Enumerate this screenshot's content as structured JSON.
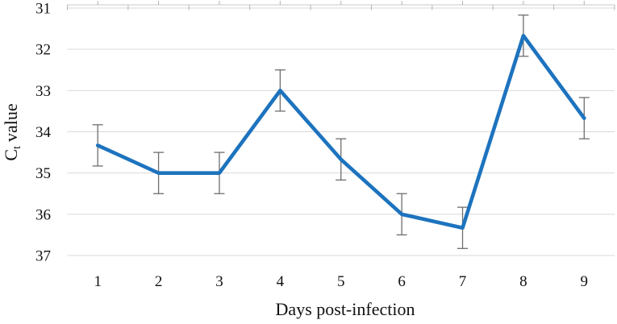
{
  "chart_data": {
    "type": "line",
    "title": "",
    "xlabel": "Days post-infection",
    "ylabel": "Ct value",
    "ylabel_parts": {
      "prefix": "C",
      "subscript": "t",
      "suffix": "value"
    },
    "categories": [
      "1",
      "2",
      "3",
      "4",
      "5",
      "6",
      "7",
      "8",
      "9"
    ],
    "series": [
      {
        "name": "Ct value",
        "values": [
          34.33,
          35.0,
          35.0,
          33.0,
          34.67,
          36.0,
          36.33,
          31.67,
          33.67
        ],
        "error_bars": [
          0.5,
          0.5,
          0.5,
          0.5,
          0.5,
          0.5,
          0.5,
          0.5,
          0.5
        ]
      }
    ],
    "y_axis": {
      "label": "Ct value",
      "min": 31,
      "max": 37,
      "step": 1,
      "reversed": true,
      "tick_labels": [
        "31",
        "32",
        "33",
        "34",
        "35",
        "36",
        "37"
      ]
    },
    "x_axis": {
      "label": "Days post-infection",
      "tick_labels": [
        "1",
        "2",
        "3",
        "4",
        "5",
        "6",
        "7",
        "8",
        "9"
      ]
    },
    "grid": "horizontal-major",
    "legend": "none",
    "colors": {
      "line": "#1d73be",
      "error_bar": "#6e6e6e",
      "gridline": "#d9d9d9",
      "axis_line": "#c9c9c9",
      "tick_mark": "#b3b3b3",
      "text": "#111111",
      "background": "#ffffff"
    }
  }
}
